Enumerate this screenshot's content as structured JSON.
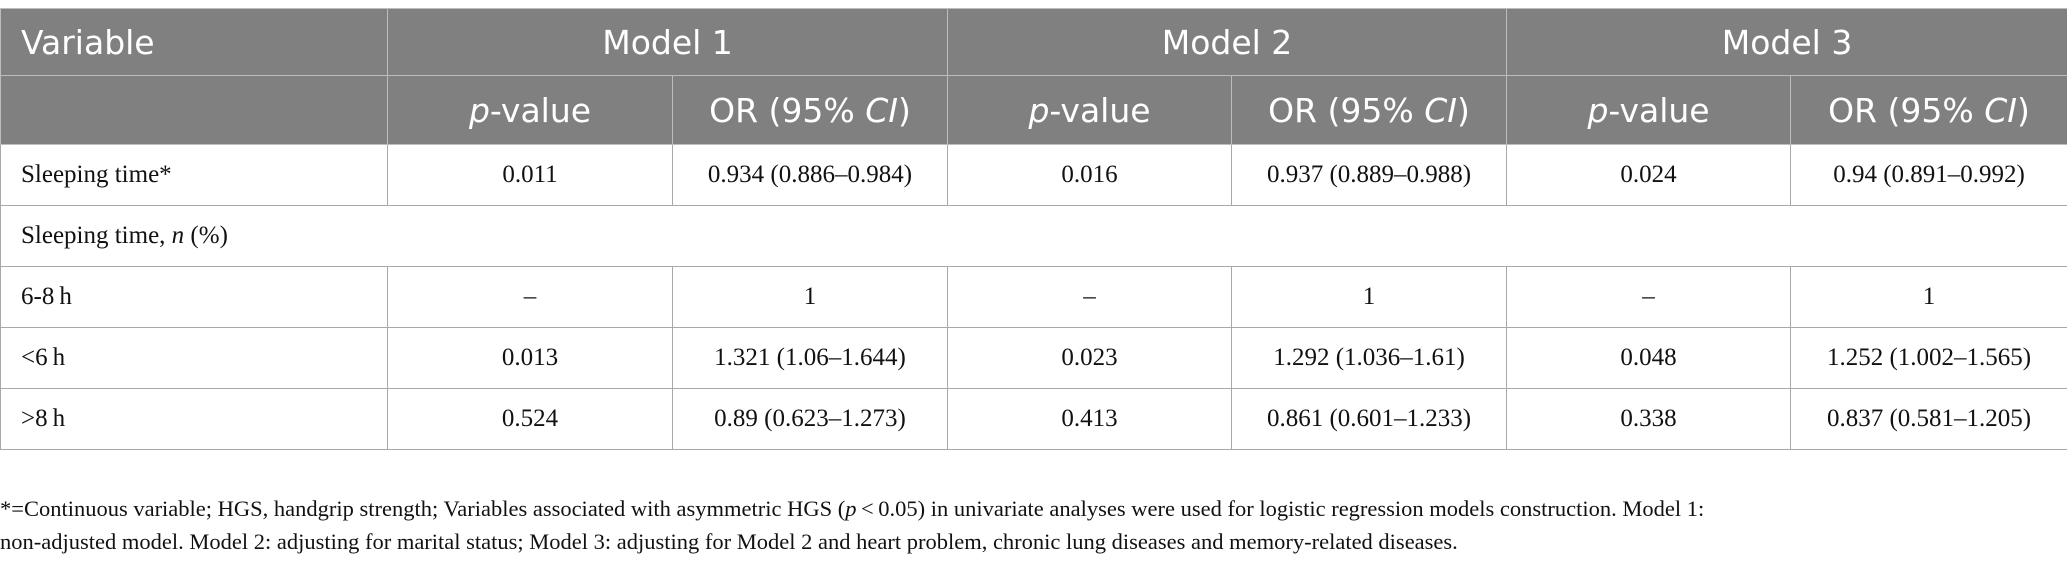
{
  "table": {
    "header": {
      "variable": "Variable",
      "models": [
        "Model 1",
        "Model 2",
        "Model 3"
      ],
      "sub_p_italic": "p",
      "sub_p_rest": "-value",
      "sub_or_pre": "OR (95% ",
      "sub_or_ci": "CI",
      "sub_or_post": ")"
    },
    "rows": [
      {
        "label": "Sleeping time*",
        "cells": [
          "0.011",
          "0.934 (0.886–0.984)",
          "0.016",
          "0.937 (0.889–0.988)",
          "0.024",
          "0.94 (0.891–0.992)"
        ]
      },
      {
        "label": "6-8 h",
        "cells": [
          "–",
          "1",
          "–",
          "1",
          "–",
          "1"
        ]
      },
      {
        "label": "<6 h",
        "cells": [
          "0.013",
          "1.321 (1.06–1.644)",
          "0.023",
          "1.292 (1.036–1.61)",
          "0.048",
          "1.252 (1.002–1.565)"
        ]
      },
      {
        "label": ">8 h",
        "cells": [
          "0.524",
          "0.89 (0.623–1.273)",
          "0.413",
          "0.861 (0.601–1.233)",
          "0.338",
          "0.837 (0.581–1.205)"
        ]
      }
    ],
    "section": {
      "pre": "Sleeping time, ",
      "italic": "n",
      "post": " (%)"
    }
  },
  "footnote": {
    "line1_pre": "*=Continuous variable; HGS, handgrip strength; Variables associated with asymmetric HGS (",
    "line1_p": "p",
    "line1_post": " < 0.05) in univariate analyses were used for logistic regression models construction. Model 1:",
    "line2": "non-adjusted model. Model 2: adjusting for marital status; Model 3: adjusting for Model 2 and heart problem, chronic lung diseases and memory-related diseases."
  }
}
